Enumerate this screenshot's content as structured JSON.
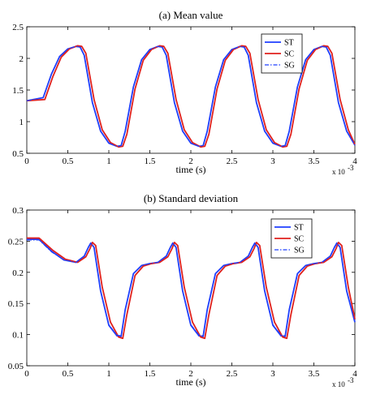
{
  "chart_data": [
    {
      "type": "line",
      "title": "(a) Mean value",
      "xlabel": "time (s)",
      "ylabel": "",
      "x_multiplier_label": "x 10",
      "x_multiplier_exponent": "-3",
      "xlim": [
        0,
        4
      ],
      "ylim": [
        0.5,
        2.5
      ],
      "xticks": [
        0,
        0.5,
        1,
        1.5,
        2,
        2.5,
        3,
        3.5,
        4
      ],
      "xtick_labels": [
        "0",
        "0.5",
        "1",
        "1.5",
        "2",
        "2.5",
        "3",
        "3.5",
        "4"
      ],
      "yticks": [
        0.5,
        1,
        1.5,
        2,
        2.5
      ],
      "ytick_labels": [
        "0.5",
        "1",
        "1.5",
        "2",
        "2.5"
      ],
      "grid": false,
      "legend_position": "top-right",
      "series": [
        {
          "name": "ST",
          "color": "#1f3fff",
          "dash": "solid",
          "x": [
            0,
            0.2,
            0.3,
            0.4,
            0.5,
            0.6,
            0.65,
            0.7,
            0.8,
            0.9,
            1.0,
            1.1,
            1.15,
            1.2,
            1.3,
            1.4,
            1.5,
            1.6,
            1.65,
            1.7,
            1.8,
            1.9,
            2.0,
            2.1,
            2.15,
            2.2,
            2.3,
            2.4,
            2.5,
            2.6,
            2.65,
            2.7,
            2.8,
            2.9,
            3.0,
            3.1,
            3.15,
            3.2,
            3.3,
            3.4,
            3.5,
            3.6,
            3.65,
            3.7,
            3.8,
            3.9,
            4.0
          ],
          "y": [
            1.33,
            1.38,
            1.75,
            2.03,
            2.15,
            2.19,
            2.18,
            2.05,
            1.3,
            0.85,
            0.66,
            0.61,
            0.62,
            0.85,
            1.55,
            1.98,
            2.14,
            2.19,
            2.18,
            2.05,
            1.3,
            0.85,
            0.66,
            0.61,
            0.62,
            0.85,
            1.55,
            1.98,
            2.14,
            2.19,
            2.18,
            2.05,
            1.3,
            0.85,
            0.66,
            0.61,
            0.62,
            0.85,
            1.55,
            1.98,
            2.14,
            2.19,
            2.18,
            2.05,
            1.3,
            0.85,
            0.63
          ]
        },
        {
          "name": "SC",
          "color": "#e0211d",
          "dash": "solid",
          "x": [
            0,
            0.22,
            0.32,
            0.42,
            0.52,
            0.62,
            0.67,
            0.72,
            0.82,
            0.92,
            1.02,
            1.12,
            1.17,
            1.22,
            1.32,
            1.42,
            1.52,
            1.62,
            1.67,
            1.72,
            1.82,
            1.92,
            2.02,
            2.12,
            2.17,
            2.22,
            2.32,
            2.42,
            2.52,
            2.62,
            2.67,
            2.72,
            2.82,
            2.92,
            3.02,
            3.12,
            3.17,
            3.22,
            3.32,
            3.42,
            3.52,
            3.62,
            3.67,
            3.72,
            3.82,
            3.92,
            4.0
          ],
          "y": [
            1.33,
            1.35,
            1.72,
            2.02,
            2.15,
            2.2,
            2.19,
            2.08,
            1.35,
            0.87,
            0.67,
            0.6,
            0.61,
            0.8,
            1.52,
            1.97,
            2.14,
            2.2,
            2.19,
            2.08,
            1.35,
            0.87,
            0.67,
            0.6,
            0.61,
            0.8,
            1.52,
            1.97,
            2.14,
            2.2,
            2.19,
            2.08,
            1.35,
            0.87,
            0.67,
            0.6,
            0.61,
            0.8,
            1.52,
            1.97,
            2.14,
            2.2,
            2.19,
            2.08,
            1.35,
            0.87,
            0.64
          ]
        },
        {
          "name": "SG",
          "color": "#1f3fff",
          "dash": "dashdot",
          "x": [
            0,
            0.2,
            0.3,
            0.4,
            0.5,
            0.6,
            0.65,
            0.7,
            0.8,
            0.9,
            1.0,
            1.1,
            1.15,
            1.2,
            1.3,
            1.4,
            1.5,
            1.6,
            1.65,
            1.7,
            1.8,
            1.9,
            2.0,
            2.1,
            2.15,
            2.2,
            2.3,
            2.4,
            2.5,
            2.6,
            2.65,
            2.7,
            2.8,
            2.9,
            3.0,
            3.1,
            3.15,
            3.2,
            3.3,
            3.4,
            3.5,
            3.6,
            3.65,
            3.7,
            3.8,
            3.9,
            4.0
          ],
          "y": [
            1.33,
            1.38,
            1.75,
            2.03,
            2.15,
            2.19,
            2.18,
            2.05,
            1.3,
            0.85,
            0.66,
            0.61,
            0.62,
            0.85,
            1.55,
            1.98,
            2.14,
            2.19,
            2.18,
            2.05,
            1.3,
            0.85,
            0.66,
            0.61,
            0.62,
            0.85,
            1.55,
            1.98,
            2.14,
            2.19,
            2.18,
            2.05,
            1.3,
            0.85,
            0.66,
            0.61,
            0.62,
            0.85,
            1.55,
            1.98,
            2.14,
            2.19,
            2.18,
            2.05,
            1.3,
            0.85,
            0.63
          ]
        }
      ]
    },
    {
      "type": "line",
      "title": "(b) Standard deviation",
      "xlabel": "time (s)",
      "ylabel": "",
      "x_multiplier_label": "x 10",
      "x_multiplier_exponent": "-3",
      "xlim": [
        0,
        4
      ],
      "ylim": [
        0.05,
        0.3
      ],
      "xticks": [
        0,
        0.5,
        1,
        1.5,
        2,
        2.5,
        3,
        3.5,
        4
      ],
      "xtick_labels": [
        "0",
        "0.5",
        "1",
        "1.5",
        "2",
        "2.5",
        "3",
        "3.5",
        "4"
      ],
      "yticks": [
        0.05,
        0.1,
        0.15,
        0.2,
        0.25,
        0.3
      ],
      "ytick_labels": [
        "0.05",
        "0.1",
        "0.15",
        "0.2",
        "0.25",
        "0.3"
      ],
      "grid": false,
      "legend_position": "top-right",
      "series": [
        {
          "name": "ST",
          "color": "#1f3fff",
          "dash": "solid",
          "x": [
            0,
            0.15,
            0.3,
            0.45,
            0.6,
            0.7,
            0.75,
            0.78,
            0.82,
            0.9,
            1.0,
            1.1,
            1.15,
            1.2,
            1.3,
            1.4,
            1.5,
            1.6,
            1.7,
            1.75,
            1.78,
            1.82,
            1.9,
            2.0,
            2.1,
            2.15,
            2.2,
            2.3,
            2.4,
            2.5,
            2.6,
            2.7,
            2.75,
            2.78,
            2.82,
            2.9,
            3.0,
            3.1,
            3.15,
            3.2,
            3.3,
            3.4,
            3.5,
            3.6,
            3.7,
            3.75,
            3.78,
            3.82,
            3.9,
            4.0
          ],
          "y": [
            0.253,
            0.253,
            0.234,
            0.22,
            0.216,
            0.226,
            0.24,
            0.247,
            0.24,
            0.17,
            0.115,
            0.098,
            0.097,
            0.14,
            0.198,
            0.211,
            0.214,
            0.216,
            0.226,
            0.24,
            0.247,
            0.24,
            0.17,
            0.115,
            0.098,
            0.097,
            0.14,
            0.198,
            0.211,
            0.214,
            0.216,
            0.226,
            0.24,
            0.247,
            0.24,
            0.17,
            0.115,
            0.098,
            0.097,
            0.14,
            0.198,
            0.211,
            0.214,
            0.216,
            0.226,
            0.24,
            0.247,
            0.24,
            0.17,
            0.12
          ]
        },
        {
          "name": "SC",
          "color": "#e0211d",
          "dash": "solid",
          "x": [
            0,
            0.15,
            0.32,
            0.47,
            0.62,
            0.72,
            0.77,
            0.8,
            0.84,
            0.92,
            1.02,
            1.12,
            1.17,
            1.22,
            1.32,
            1.42,
            1.52,
            1.62,
            1.72,
            1.77,
            1.8,
            1.84,
            1.92,
            2.02,
            2.12,
            2.17,
            2.22,
            2.32,
            2.42,
            2.52,
            2.62,
            2.72,
            2.77,
            2.8,
            2.84,
            2.92,
            3.02,
            3.12,
            3.17,
            3.22,
            3.32,
            3.42,
            3.52,
            3.62,
            3.72,
            3.77,
            3.8,
            3.84,
            3.92,
            4.0
          ],
          "y": [
            0.255,
            0.255,
            0.235,
            0.221,
            0.216,
            0.225,
            0.238,
            0.248,
            0.243,
            0.176,
            0.12,
            0.096,
            0.094,
            0.132,
            0.195,
            0.21,
            0.214,
            0.216,
            0.225,
            0.238,
            0.248,
            0.243,
            0.176,
            0.12,
            0.096,
            0.094,
            0.132,
            0.195,
            0.21,
            0.214,
            0.216,
            0.225,
            0.238,
            0.248,
            0.243,
            0.176,
            0.12,
            0.096,
            0.094,
            0.132,
            0.195,
            0.21,
            0.214,
            0.216,
            0.225,
            0.238,
            0.248,
            0.243,
            0.176,
            0.125
          ]
        },
        {
          "name": "SG",
          "color": "#1f3fff",
          "dash": "dashdot",
          "x": [
            0,
            0.15,
            0.3,
            0.45,
            0.6,
            0.7,
            0.75,
            0.78,
            0.82,
            0.9,
            1.0,
            1.1,
            1.15,
            1.2,
            1.3,
            1.4,
            1.5,
            1.6,
            1.7,
            1.75,
            1.78,
            1.82,
            1.9,
            2.0,
            2.1,
            2.15,
            2.2,
            2.3,
            2.4,
            2.5,
            2.6,
            2.7,
            2.75,
            2.78,
            2.82,
            2.9,
            3.0,
            3.1,
            3.15,
            3.2,
            3.3,
            3.4,
            3.5,
            3.6,
            3.7,
            3.75,
            3.78,
            3.82,
            3.9,
            4.0
          ],
          "y": [
            0.252,
            0.252,
            0.233,
            0.22,
            0.216,
            0.226,
            0.24,
            0.246,
            0.24,
            0.17,
            0.116,
            0.099,
            0.098,
            0.14,
            0.198,
            0.211,
            0.214,
            0.216,
            0.226,
            0.24,
            0.246,
            0.24,
            0.17,
            0.116,
            0.099,
            0.098,
            0.14,
            0.198,
            0.211,
            0.214,
            0.216,
            0.226,
            0.24,
            0.246,
            0.24,
            0.17,
            0.116,
            0.099,
            0.098,
            0.14,
            0.198,
            0.211,
            0.214,
            0.216,
            0.226,
            0.24,
            0.246,
            0.24,
            0.17,
            0.12
          ]
        }
      ]
    }
  ]
}
